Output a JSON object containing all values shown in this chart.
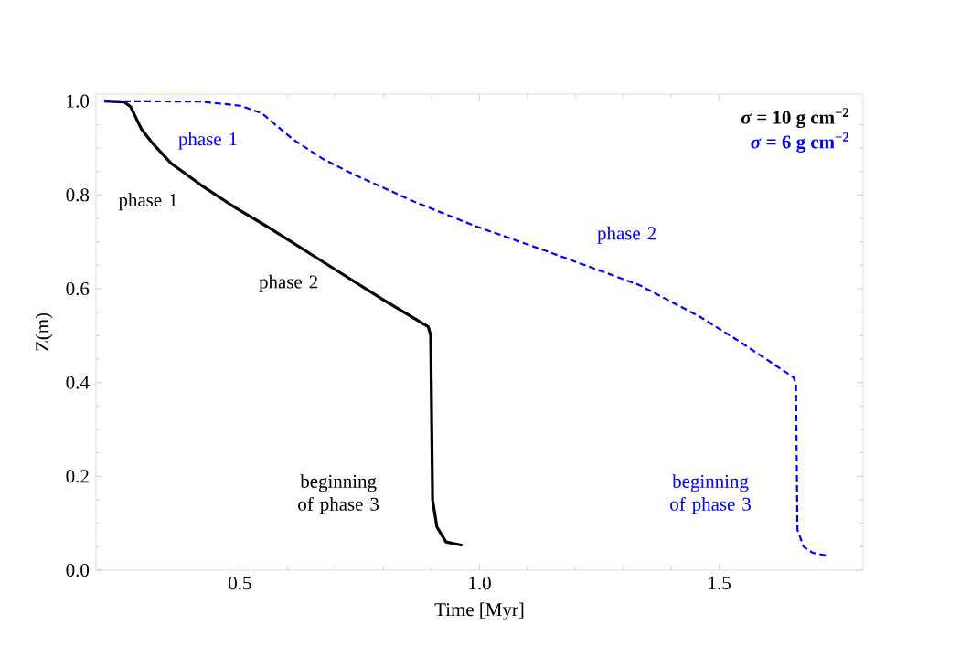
{
  "chart_data": {
    "type": "line",
    "xlabel": "Time [Myr]",
    "ylabel": "Z(m)",
    "xlim": [
      0.2,
      1.8
    ],
    "ylim": [
      0,
      1.015
    ],
    "xticks": [
      0.5,
      {
        "value": 1,
        "label": "1.0"
      },
      1.5
    ],
    "yticks": [
      {
        "value": 0,
        "label": "0.0"
      },
      0.2,
      0.4,
      0.6,
      0.8,
      {
        "value": 1,
        "label": "1.0"
      }
    ],
    "legend": "top right",
    "marker": "none",
    "series": [
      {
        "name": "*σ* = 10 g cm$^{−2}$",
        "color": "#000000",
        "line_style": "solid",
        "x": [
          0.217,
          0.259,
          0.272,
          0.295,
          0.319,
          0.356,
          0.419,
          0.495,
          0.558,
          0.705,
          0.8,
          0.893,
          0.898,
          0.902,
          0.911,
          0.93,
          0.964
        ],
        "values": [
          1.0,
          0.998,
          0.988,
          0.94,
          0.909,
          0.868,
          0.821,
          0.77,
          0.732,
          0.637,
          0.576,
          0.519,
          0.501,
          0.15,
          0.092,
          0.06,
          0.053
        ]
      },
      {
        "name": "*σ* = 6 g cm$^{−2}$",
        "color": "#0000ff",
        "line_style": "dashed",
        "x": [
          0.217,
          0.419,
          0.502,
          0.546,
          0.61,
          0.673,
          0.737,
          0.863,
          0.99,
          1.143,
          1.333,
          1.46,
          1.537,
          1.655,
          1.66,
          1.663,
          1.676,
          1.695,
          1.724
        ],
        "values": [
          1.0,
          0.999,
          0.99,
          0.974,
          0.919,
          0.877,
          0.844,
          0.786,
          0.734,
          0.679,
          0.608,
          0.54,
          0.491,
          0.411,
          0.397,
          0.086,
          0.05,
          0.037,
          0.031
        ]
      }
    ],
    "annotations": [
      "phase 1",
      "phase 1",
      "phase 2",
      "phase 2",
      "beginning of phase 3",
      "beginning of phase 3"
    ]
  }
}
